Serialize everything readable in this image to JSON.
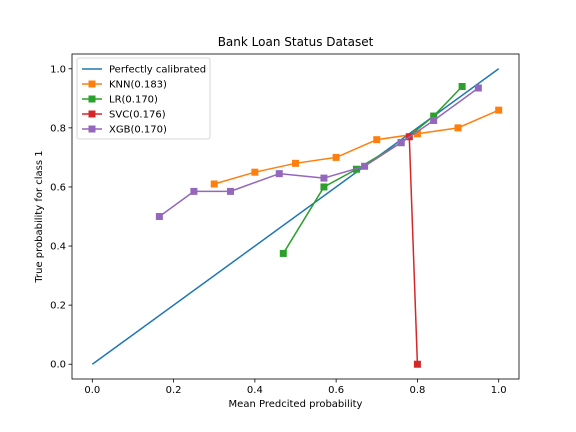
{
  "chart_data": {
    "type": "line",
    "title": "Bank Loan Status Dataset",
    "xlabel": "Mean Predcited probability",
    "ylabel": "True probability for class 1",
    "xlim": [
      -0.05,
      1.05
    ],
    "ylim": [
      -0.05,
      1.05
    ],
    "xticks": [
      0.0,
      0.2,
      0.4,
      0.6,
      0.8,
      1.0
    ],
    "yticks": [
      0.0,
      0.2,
      0.4,
      0.6,
      0.8,
      1.0
    ],
    "xtick_labels": [
      "0.0",
      "0.2",
      "0.4",
      "0.6",
      "0.8",
      "1.0"
    ],
    "ytick_labels": [
      "0.0",
      "0.2",
      "0.4",
      "0.6",
      "0.8",
      "1.0"
    ],
    "grid": false,
    "legend_position": "top-left",
    "series": [
      {
        "name": "Perfectly calibrated",
        "color": "#1f77b4",
        "marker": "none",
        "x": [
          0.0,
          1.0
        ],
        "y": [
          0.0,
          1.0
        ]
      },
      {
        "name": "KNN(0.183)",
        "color": "#ff7f0e",
        "marker": "square",
        "x": [
          0.3,
          0.4,
          0.5,
          0.6,
          0.7,
          0.8,
          0.9,
          1.0
        ],
        "y": [
          0.61,
          0.65,
          0.68,
          0.7,
          0.76,
          0.78,
          0.8,
          0.86
        ]
      },
      {
        "name": "LR(0.170)",
        "color": "#2ca02c",
        "marker": "square",
        "x": [
          0.47,
          0.57,
          0.65,
          0.76,
          0.84,
          0.91
        ],
        "y": [
          0.375,
          0.6,
          0.66,
          0.75,
          0.84,
          0.94
        ]
      },
      {
        "name": "SVC(0.176)",
        "color": "#d62728",
        "marker": "square",
        "x": [
          0.78,
          0.8
        ],
        "y": [
          0.77,
          0.0
        ]
      },
      {
        "name": "XGB(0.170)",
        "color": "#9467bd",
        "marker": "square",
        "x": [
          0.165,
          0.25,
          0.34,
          0.46,
          0.57,
          0.67,
          0.76,
          0.84,
          0.95
        ],
        "y": [
          0.5,
          0.585,
          0.585,
          0.645,
          0.63,
          0.67,
          0.75,
          0.825,
          0.935
        ]
      }
    ]
  }
}
